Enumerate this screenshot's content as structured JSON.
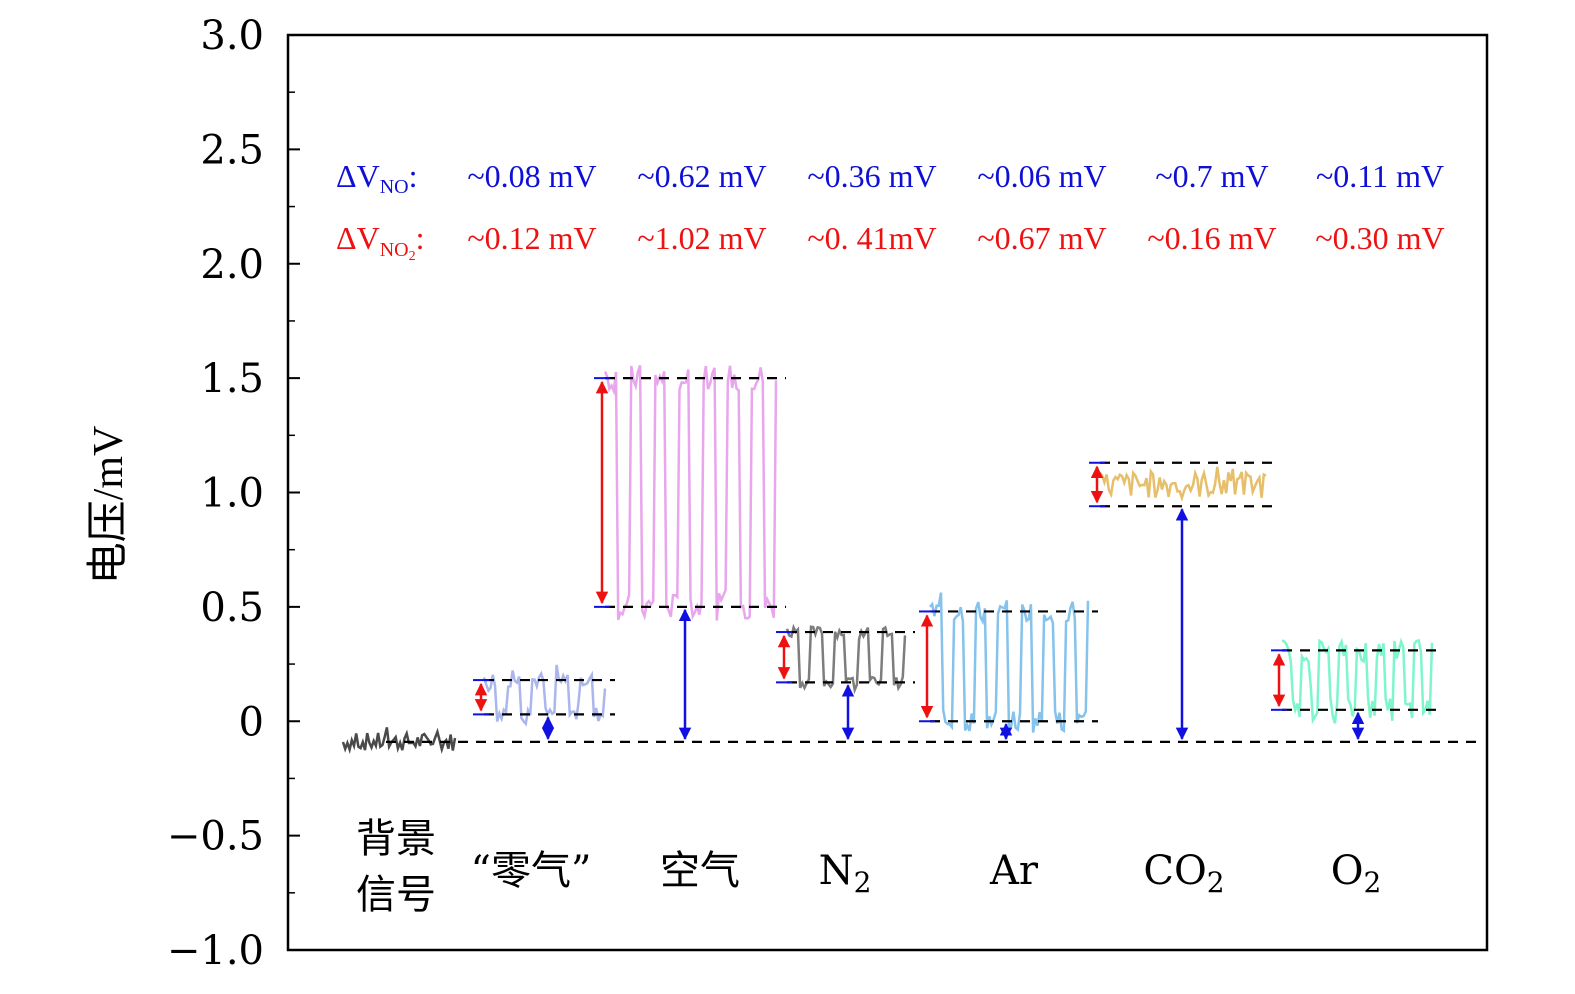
{
  "chart_data": {
    "type": "line",
    "ylabel": "电压/mV",
    "ylim": [
      -1.0,
      3.0
    ],
    "y_ticks": [
      "3.0",
      "2.5",
      "2.0",
      "1.5",
      "1.0",
      "0.5",
      "0",
      "−0.5",
      "−1.0"
    ],
    "grid": false,
    "baseline_mV": -0.09,
    "groups": [
      {
        "label": "背景",
        "label2": "信号",
        "color": "#4a4a4a",
        "low": -0.09,
        "high": -0.09
      },
      {
        "label": "“零气”",
        "label2": "",
        "color": "#aab6ec",
        "low": 0.03,
        "high": 0.18
      },
      {
        "label": "空气",
        "label2": "",
        "color": "#e8a6ec",
        "low": 0.5,
        "high": 1.5
      },
      {
        "label": "N",
        "sub": "2",
        "label2": "",
        "color": "#7d7d7d",
        "low": 0.17,
        "high": 0.39
      },
      {
        "label": "Ar",
        "label2": "",
        "color": "#85c2ec",
        "low": 0.0,
        "high": 0.48
      },
      {
        "label": "CO",
        "sub": "2",
        "label2": "",
        "color": "#e7bf6a",
        "low": 0.94,
        "high": 1.13
      },
      {
        "label": "O",
        "sub": "2",
        "label2": "",
        "color": "#7ff5cb",
        "low": 0.05,
        "high": 0.31
      }
    ],
    "annotations": {
      "no_prefix": "ΔV",
      "no_sub": "NO",
      "no_suffix": ":",
      "no_color": "#0f0fd6",
      "no_values": [
        "~0.08 mV",
        "~0.62 mV",
        "~0.36 mV",
        "~0.06 mV",
        "~0.7 mV",
        "~0.11 mV"
      ],
      "no2_prefix": "ΔV",
      "no2_sub": "NO",
      "no2_subsub": "2",
      "no2_suffix": ":",
      "no2_color": "#ee1111",
      "no2_values": [
        "~0.12 mV",
        "~1.02 mV",
        "~0. 41mV",
        "~0.67 mV",
        "~0.16 mV",
        "~0.30 mV"
      ]
    }
  }
}
